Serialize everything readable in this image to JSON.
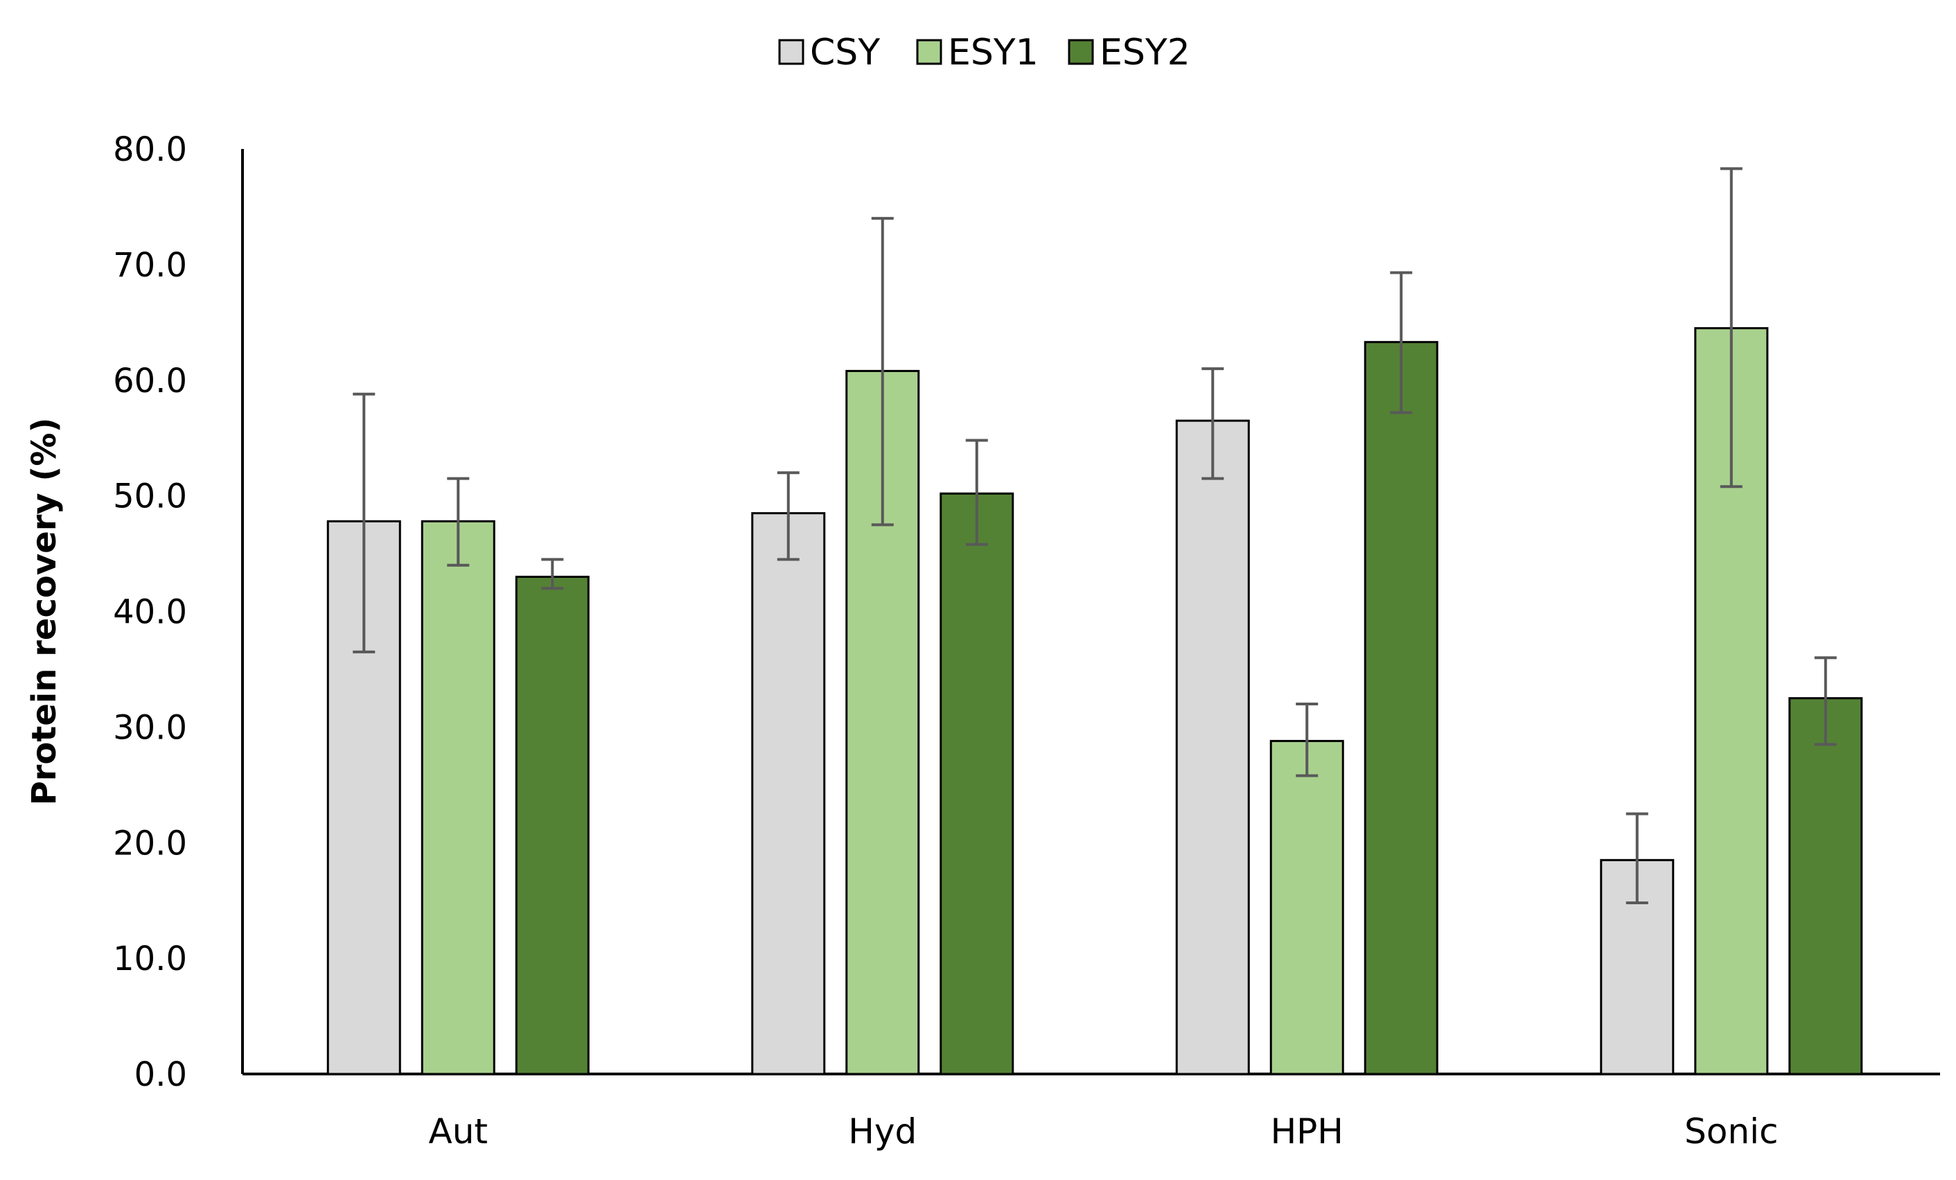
{
  "chart_data": {
    "type": "bar",
    "title": "",
    "xlabel": "",
    "ylabel": "Protein recovery (%)",
    "ylim": [
      0,
      80
    ],
    "yticks": [
      "0.0",
      "10.0",
      "20.0",
      "30.0",
      "40.0",
      "50.0",
      "60.0",
      "70.0",
      "80.0"
    ],
    "ytick_values": [
      0,
      10,
      20,
      30,
      40,
      50,
      60,
      70,
      80
    ],
    "categories": [
      "Aut",
      "Hyd",
      "HPH",
      "Sonic"
    ],
    "grid": false,
    "legend_position": "top-center",
    "series": [
      {
        "name": "CSY",
        "color": "#d9d9d9",
        "values": [
          47.8,
          48.5,
          56.5,
          18.5
        ],
        "error_low": [
          36.5,
          44.5,
          51.5,
          14.8
        ],
        "error_high": [
          58.8,
          52.0,
          61.0,
          22.5
        ]
      },
      {
        "name": "ESY1",
        "color": "#a9d18e",
        "values": [
          47.8,
          60.8,
          28.8,
          64.5
        ],
        "error_low": [
          44.0,
          47.5,
          25.8,
          50.8
        ],
        "error_high": [
          51.5,
          74.0,
          32.0,
          78.3
        ]
      },
      {
        "name": "ESY2",
        "color": "#548235",
        "values": [
          43.0,
          50.2,
          63.3,
          32.5
        ],
        "error_low": [
          42.0,
          45.8,
          57.2,
          28.5
        ],
        "error_high": [
          44.5,
          54.8,
          69.3,
          36.0
        ]
      }
    ]
  }
}
